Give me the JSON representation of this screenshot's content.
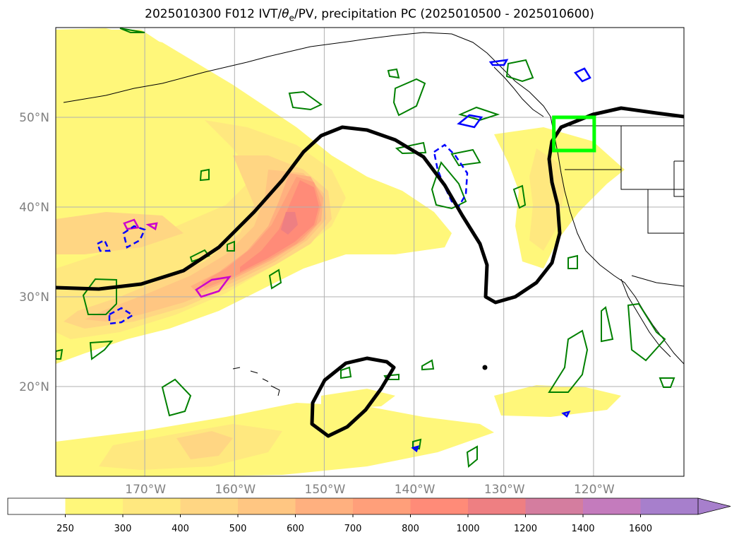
{
  "title": "2025010300 F012 IVT/θe/PV, precipitation PC (2025010500 - 2025010600)",
  "title_parts": {
    "prefix": "2025010300 F012 IVT/",
    "theta": "θ",
    "theta_sub": "e",
    "suffix": "/PV, precipitation PC (2025010500 - 2025010600)"
  },
  "map": {
    "extent": {
      "lon_min": -180,
      "lon_max": -110,
      "lat_min": 10,
      "lat_max": 60
    },
    "lon_ticks": [
      {
        "lon": -170,
        "label": "170°W"
      },
      {
        "lon": -160,
        "label": "160°W"
      },
      {
        "lon": -150,
        "label": "150°W"
      },
      {
        "lon": -140,
        "label": "140°W"
      },
      {
        "lon": -130,
        "label": "130°W"
      },
      {
        "lon": -120,
        "label": "120°W"
      }
    ],
    "lat_ticks": [
      {
        "lat": 20,
        "label": "20°N"
      },
      {
        "lat": 30,
        "label": "30°N"
      },
      {
        "lat": 40,
        "label": "40°N"
      },
      {
        "lat": 50,
        "label": "50°N"
      }
    ],
    "gridlines": true,
    "highlight_box": {
      "lon_min": -124.5,
      "lon_max": -120,
      "lat_min": 46.3,
      "lat_max": 50,
      "color": "#00ff00"
    },
    "colors": {
      "pv_contour": "#000000",
      "precip_contour": "#008000",
      "dashed_contour": "#0000ff",
      "magenta_contour": "#cc00cc"
    }
  },
  "colorbar": {
    "levels": [
      "250",
      "300",
      "400",
      "500",
      "600",
      "700",
      "800",
      "1000",
      "1200",
      "1400",
      "1600"
    ],
    "colors": [
      "#ffffff",
      "#fff77a",
      "#ffe87f",
      "#ffd683",
      "#ffc682",
      "#ffb07f",
      "#ff9f7a",
      "#ff8b78",
      "#ee7f82",
      "#d47d9f",
      "#c47bbd",
      "#a77fcc"
    ],
    "extend": "max"
  }
}
